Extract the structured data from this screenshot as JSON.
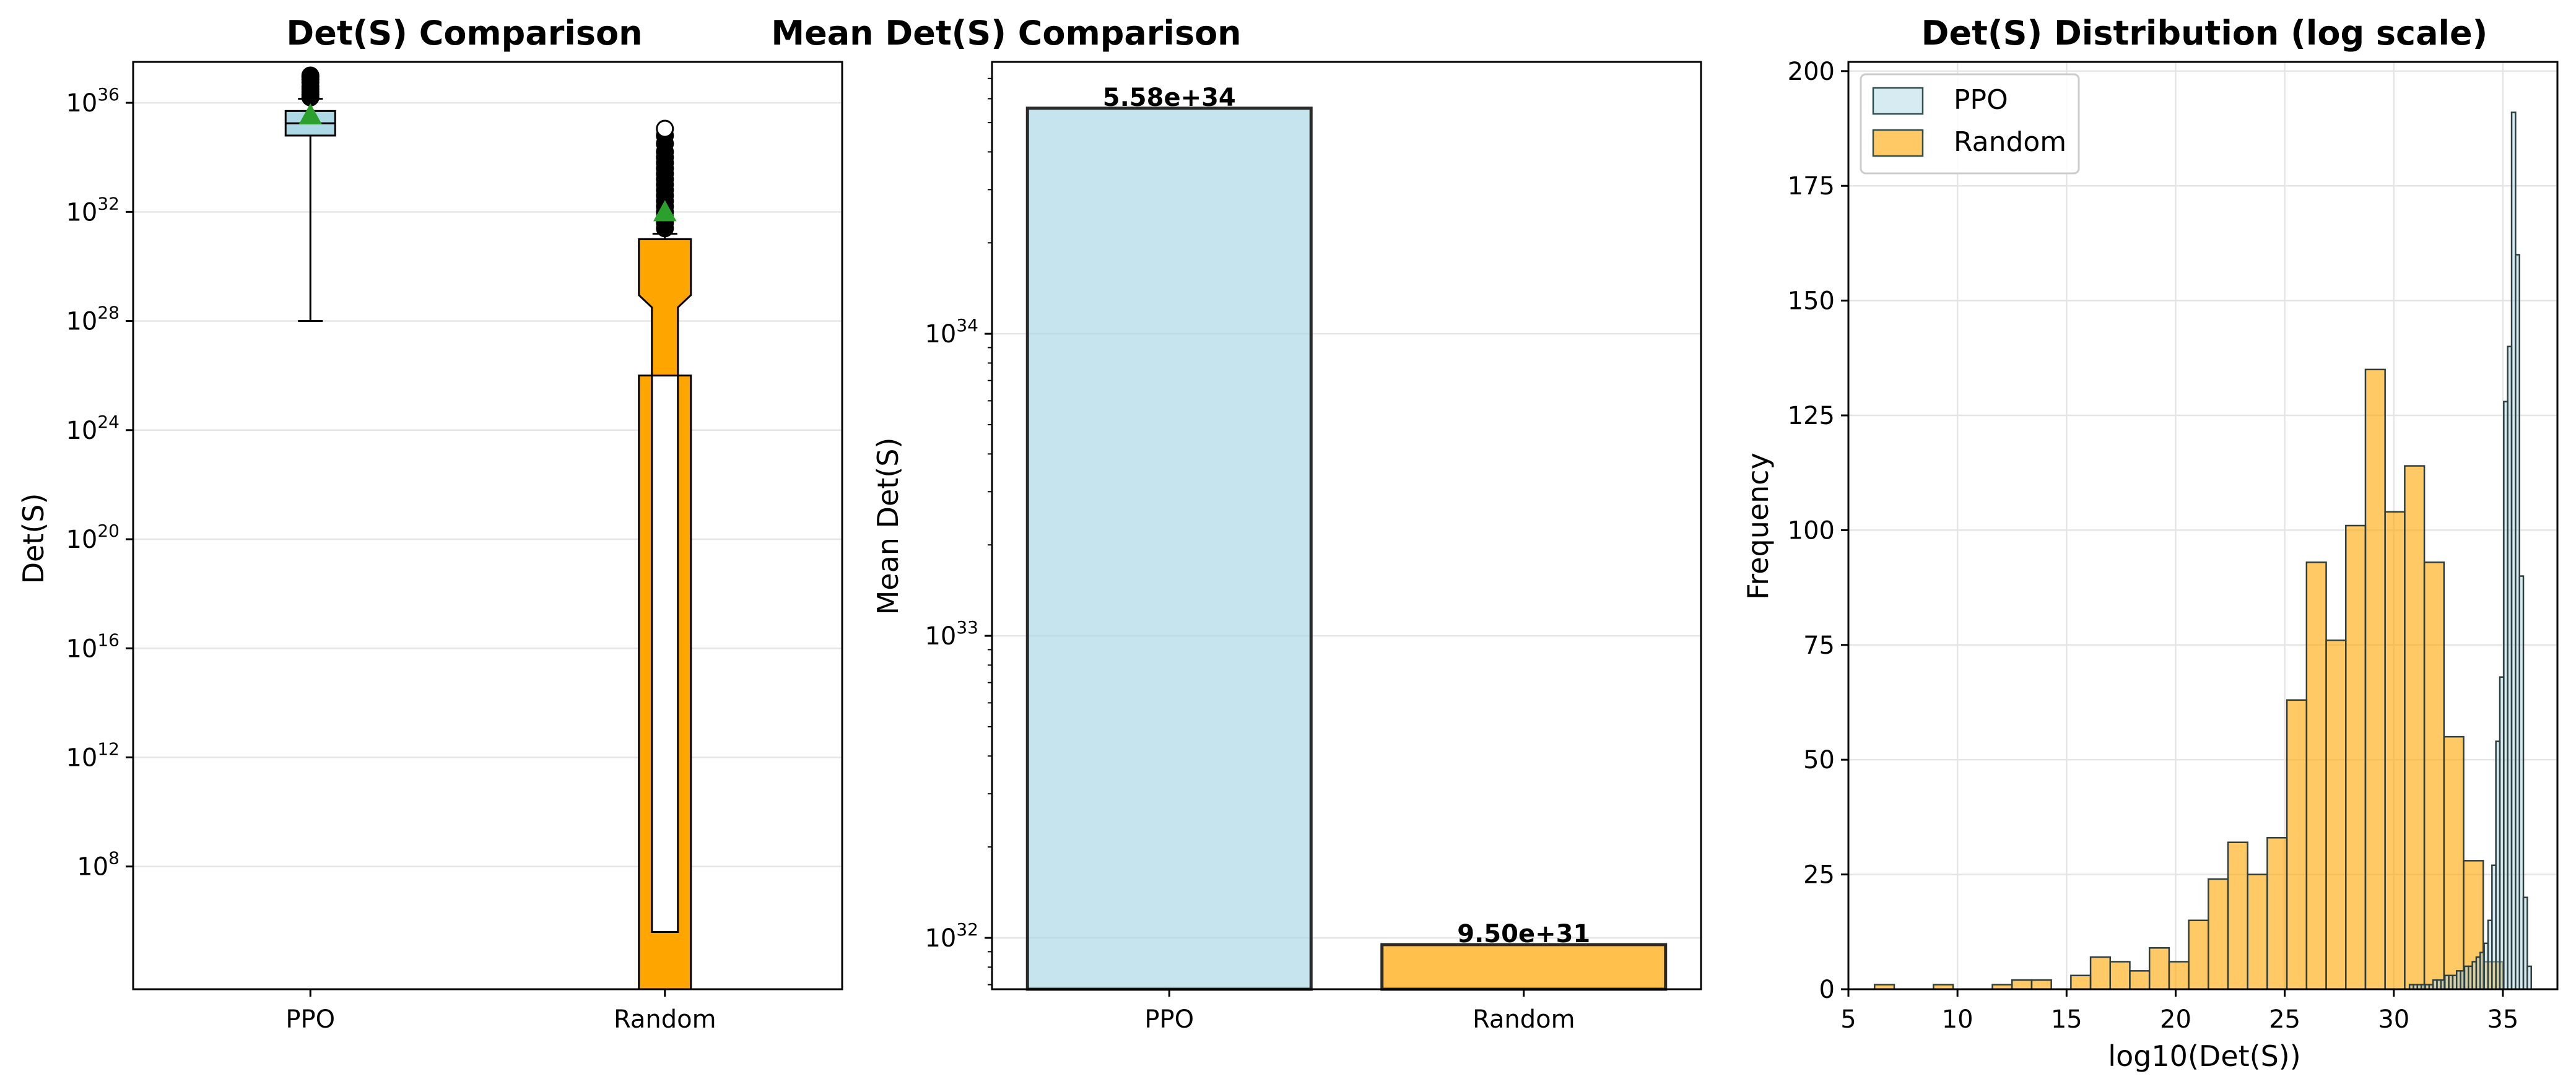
{
  "chart_data": [
    {
      "type": "box",
      "title": "Det(S) Comparison",
      "xlabel": "",
      "ylabel": "Det(S)",
      "yscale": "log",
      "ylim_log10": [
        3.5,
        37.5
      ],
      "yticks": [
        {
          "exp": 8,
          "base": "10",
          "sup": "8"
        },
        {
          "exp": 12,
          "base": "10",
          "sup": "12"
        },
        {
          "exp": 16,
          "base": "10",
          "sup": "16"
        },
        {
          "exp": 20,
          "base": "10",
          "sup": "20"
        },
        {
          "exp": 24,
          "base": "10",
          "sup": "24"
        },
        {
          "exp": 28,
          "base": "10",
          "sup": "28"
        },
        {
          "exp": 32,
          "base": "10",
          "sup": "32"
        },
        {
          "exp": 36,
          "base": "10",
          "sup": "36"
        }
      ],
      "categories": [
        "PPO",
        "Random"
      ],
      "boxes": [
        {
          "name": "PPO",
          "color": "#add8e6",
          "notch": false,
          "whisker_low": 28.0,
          "q1": 34.8,
          "median": 35.25,
          "q3": 35.7,
          "whisker_high": 36.15,
          "mean": 35.55,
          "outliers_high": [
            36.2,
            36.3,
            36.4,
            36.5,
            36.6,
            36.75,
            36.85,
            36.95,
            37.0
          ]
        },
        {
          "name": "Random",
          "color": "#ffa500",
          "notch": true,
          "whisker_low": 3.5,
          "q1": 26.0,
          "median": 28.95,
          "q3": 31.0,
          "whisker_high": 31.2,
          "notch_low": 28.5,
          "notch_high": 29.5,
          "mean": 32.0,
          "outliers_high": [
            31.4,
            31.6,
            31.8,
            32.0,
            32.2,
            32.4,
            32.6,
            32.8,
            33.0,
            33.2,
            33.4,
            33.6,
            33.8,
            34.0,
            34.2,
            34.5,
            34.8
          ]
        }
      ]
    },
    {
      "type": "bar",
      "title": "Mean Det(S) Comparison",
      "xlabel": "",
      "ylabel": "Mean Det(S)",
      "yscale": "log",
      "ylim_log10": [
        31.83,
        34.9
      ],
      "yticks": [
        {
          "exp": 32,
          "base": "10",
          "sup": "32"
        },
        {
          "exp": 33,
          "base": "10",
          "sup": "33"
        },
        {
          "exp": 34,
          "base": "10",
          "sup": "34"
        }
      ],
      "categories": [
        "PPO",
        "Random"
      ],
      "values": [
        5.58e+34,
        9.5e+31
      ],
      "value_labels": [
        "5.58e+34",
        "9.50e+31"
      ],
      "colors": [
        "#add8e6",
        "#ffa500"
      ]
    },
    {
      "type": "histogram",
      "title": "Det(S) Distribution (log scale)",
      "xlabel": "log10(Det(S))",
      "ylabel": "Frequency",
      "xlim": [
        5,
        37.5
      ],
      "ylim": [
        0,
        202
      ],
      "xticks": [
        5,
        10,
        15,
        20,
        25,
        30,
        35
      ],
      "yticks": [
        0,
        25,
        50,
        75,
        100,
        125,
        150,
        175,
        200
      ],
      "grid": true,
      "legend": {
        "position": "top-left",
        "entries": [
          "PPO",
          "Random"
        ]
      },
      "series": [
        {
          "name": "Random",
          "color": "#ffa500",
          "bin_start": 6.2,
          "bin_width": 0.9,
          "counts": [
            1,
            0,
            0,
            1,
            0,
            0,
            1,
            2,
            2,
            0,
            3,
            7,
            6,
            4,
            9,
            6,
            15,
            24,
            32,
            25,
            33,
            63,
            93,
            76,
            101,
            135,
            104,
            114,
            93,
            55,
            28,
            6
          ]
        },
        {
          "name": "PPO",
          "color": "#add8e6",
          "bin_start": 28.2,
          "bin_width": 0.18,
          "counts": [
            0,
            0,
            0,
            0,
            0,
            0,
            0,
            0,
            0,
            0,
            0,
            0,
            0,
            0,
            1,
            1,
            1,
            1,
            1,
            1,
            2,
            2,
            2,
            3,
            3,
            3,
            4,
            4,
            5,
            5,
            6,
            7,
            8,
            10,
            15,
            27,
            54,
            68,
            128,
            140,
            191,
            160,
            90,
            20,
            5
          ]
        }
      ]
    }
  ]
}
